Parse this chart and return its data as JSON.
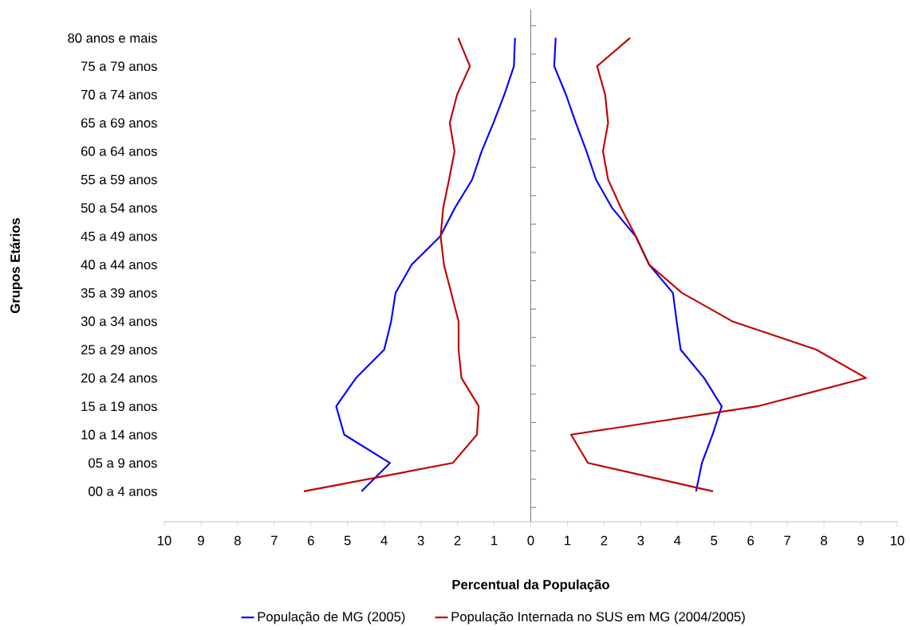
{
  "chart_data": {
    "type": "line",
    "orientation": "horizontal",
    "xlabel": "Percentual da População",
    "ylabel": "Grupos Etários",
    "categories": [
      "80 anos e mais",
      "75 a 79 anos",
      "70 a 74 anos",
      "65 a 69 anos",
      "60 a 64 anos",
      "55 a 59 anos",
      "50 a 54 anos",
      "45 a 49 anos",
      "40 a 44 anos",
      "35 a 39 anos",
      "30 a 34 anos",
      "25 a 29 anos",
      "20 a 24 anos",
      "15 a 19 anos",
      "10 a 14 anos",
      "05 a 9 anos",
      "00 a 4 anos"
    ],
    "xlim": [
      -10,
      10
    ],
    "xticks": [
      {
        "value": -10,
        "label": "10"
      },
      {
        "value": -9,
        "label": "9"
      },
      {
        "value": -8,
        "label": "8"
      },
      {
        "value": -7,
        "label": "7"
      },
      {
        "value": -6,
        "label": "6"
      },
      {
        "value": -5,
        "label": "5"
      },
      {
        "value": -4,
        "label": "4"
      },
      {
        "value": -3,
        "label": "3"
      },
      {
        "value": -2,
        "label": "2"
      },
      {
        "value": -1,
        "label": "1"
      },
      0,
      1,
      2,
      3,
      4,
      5,
      6,
      7,
      8,
      9,
      10
    ],
    "legend": "bottom",
    "series": [
      {
        "name": "População de MG (2005)",
        "color": "#0000ff",
        "values": [
          -0.43,
          -0.46,
          -0.72,
          -1.02,
          -1.34,
          -1.6,
          -2.07,
          -2.47,
          -3.25,
          -3.69,
          -3.81,
          -4.0,
          -4.77,
          -5.31,
          -5.09,
          -3.84,
          -4.62
        ]
      },
      {
        "name": "População Internada no SUS em MG (2004/2005)",
        "color": "#c00000",
        "values": [
          -1.98,
          -1.66,
          -2.01,
          -2.21,
          -2.08,
          -2.23,
          -2.39,
          -2.46,
          -2.37,
          -2.17,
          -1.97,
          -1.97,
          -1.89,
          -1.42,
          -1.47,
          -2.13,
          -6.19
        ]
      },
      {
        "color": "#0000ff",
        "values": [
          0.68,
          0.64,
          0.96,
          1.23,
          1.52,
          1.78,
          2.22,
          2.86,
          3.23,
          3.88,
          3.98,
          4.09,
          4.73,
          5.21,
          4.96,
          4.67,
          4.51
        ]
      },
      {
        "color": "#c00000",
        "values": [
          2.71,
          1.81,
          2.03,
          2.11,
          1.97,
          2.11,
          2.46,
          2.87,
          3.23,
          4.13,
          5.5,
          7.79,
          9.15,
          6.18,
          1.1,
          1.56,
          4.97
        ]
      }
    ]
  }
}
